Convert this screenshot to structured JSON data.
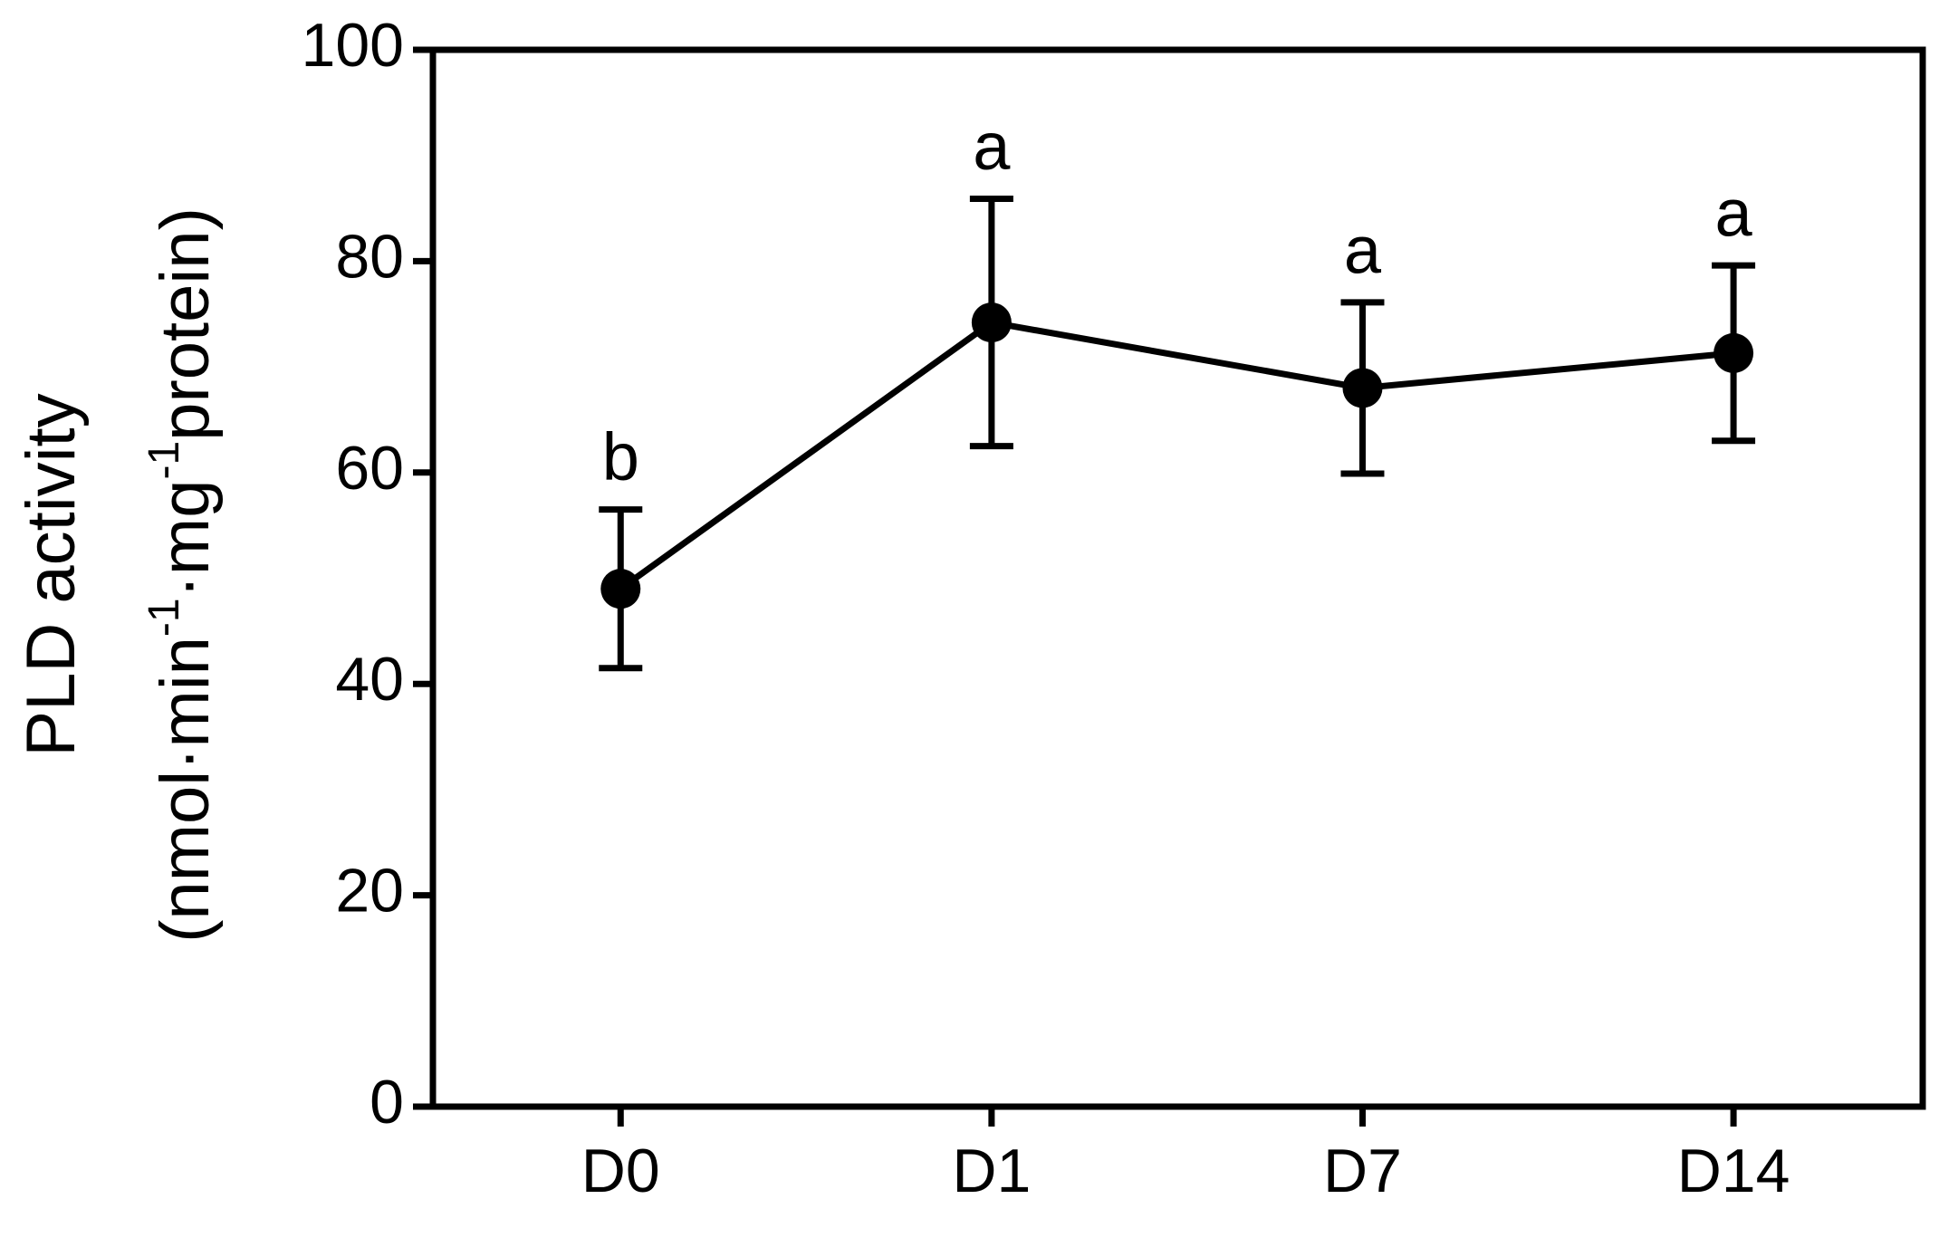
{
  "chart_data": {
    "type": "line",
    "ylabel": "PLD activity",
    "ylabel_unit": [
      "(nmol·min",
      "-1",
      "·mg",
      "-1",
      "protein)"
    ],
    "categories": [
      "D0",
      "D1",
      "D7",
      "D14"
    ],
    "values": [
      49,
      74.2,
      68,
      71.3
    ],
    "errors": [
      7.5,
      11.7,
      8.1,
      8.3
    ],
    "annotations": [
      "b",
      "a",
      "a",
      "a"
    ],
    "color": "#000000",
    "ylim": [
      0,
      100
    ],
    "yticks": [
      0,
      20,
      40,
      60,
      80,
      100
    ]
  }
}
